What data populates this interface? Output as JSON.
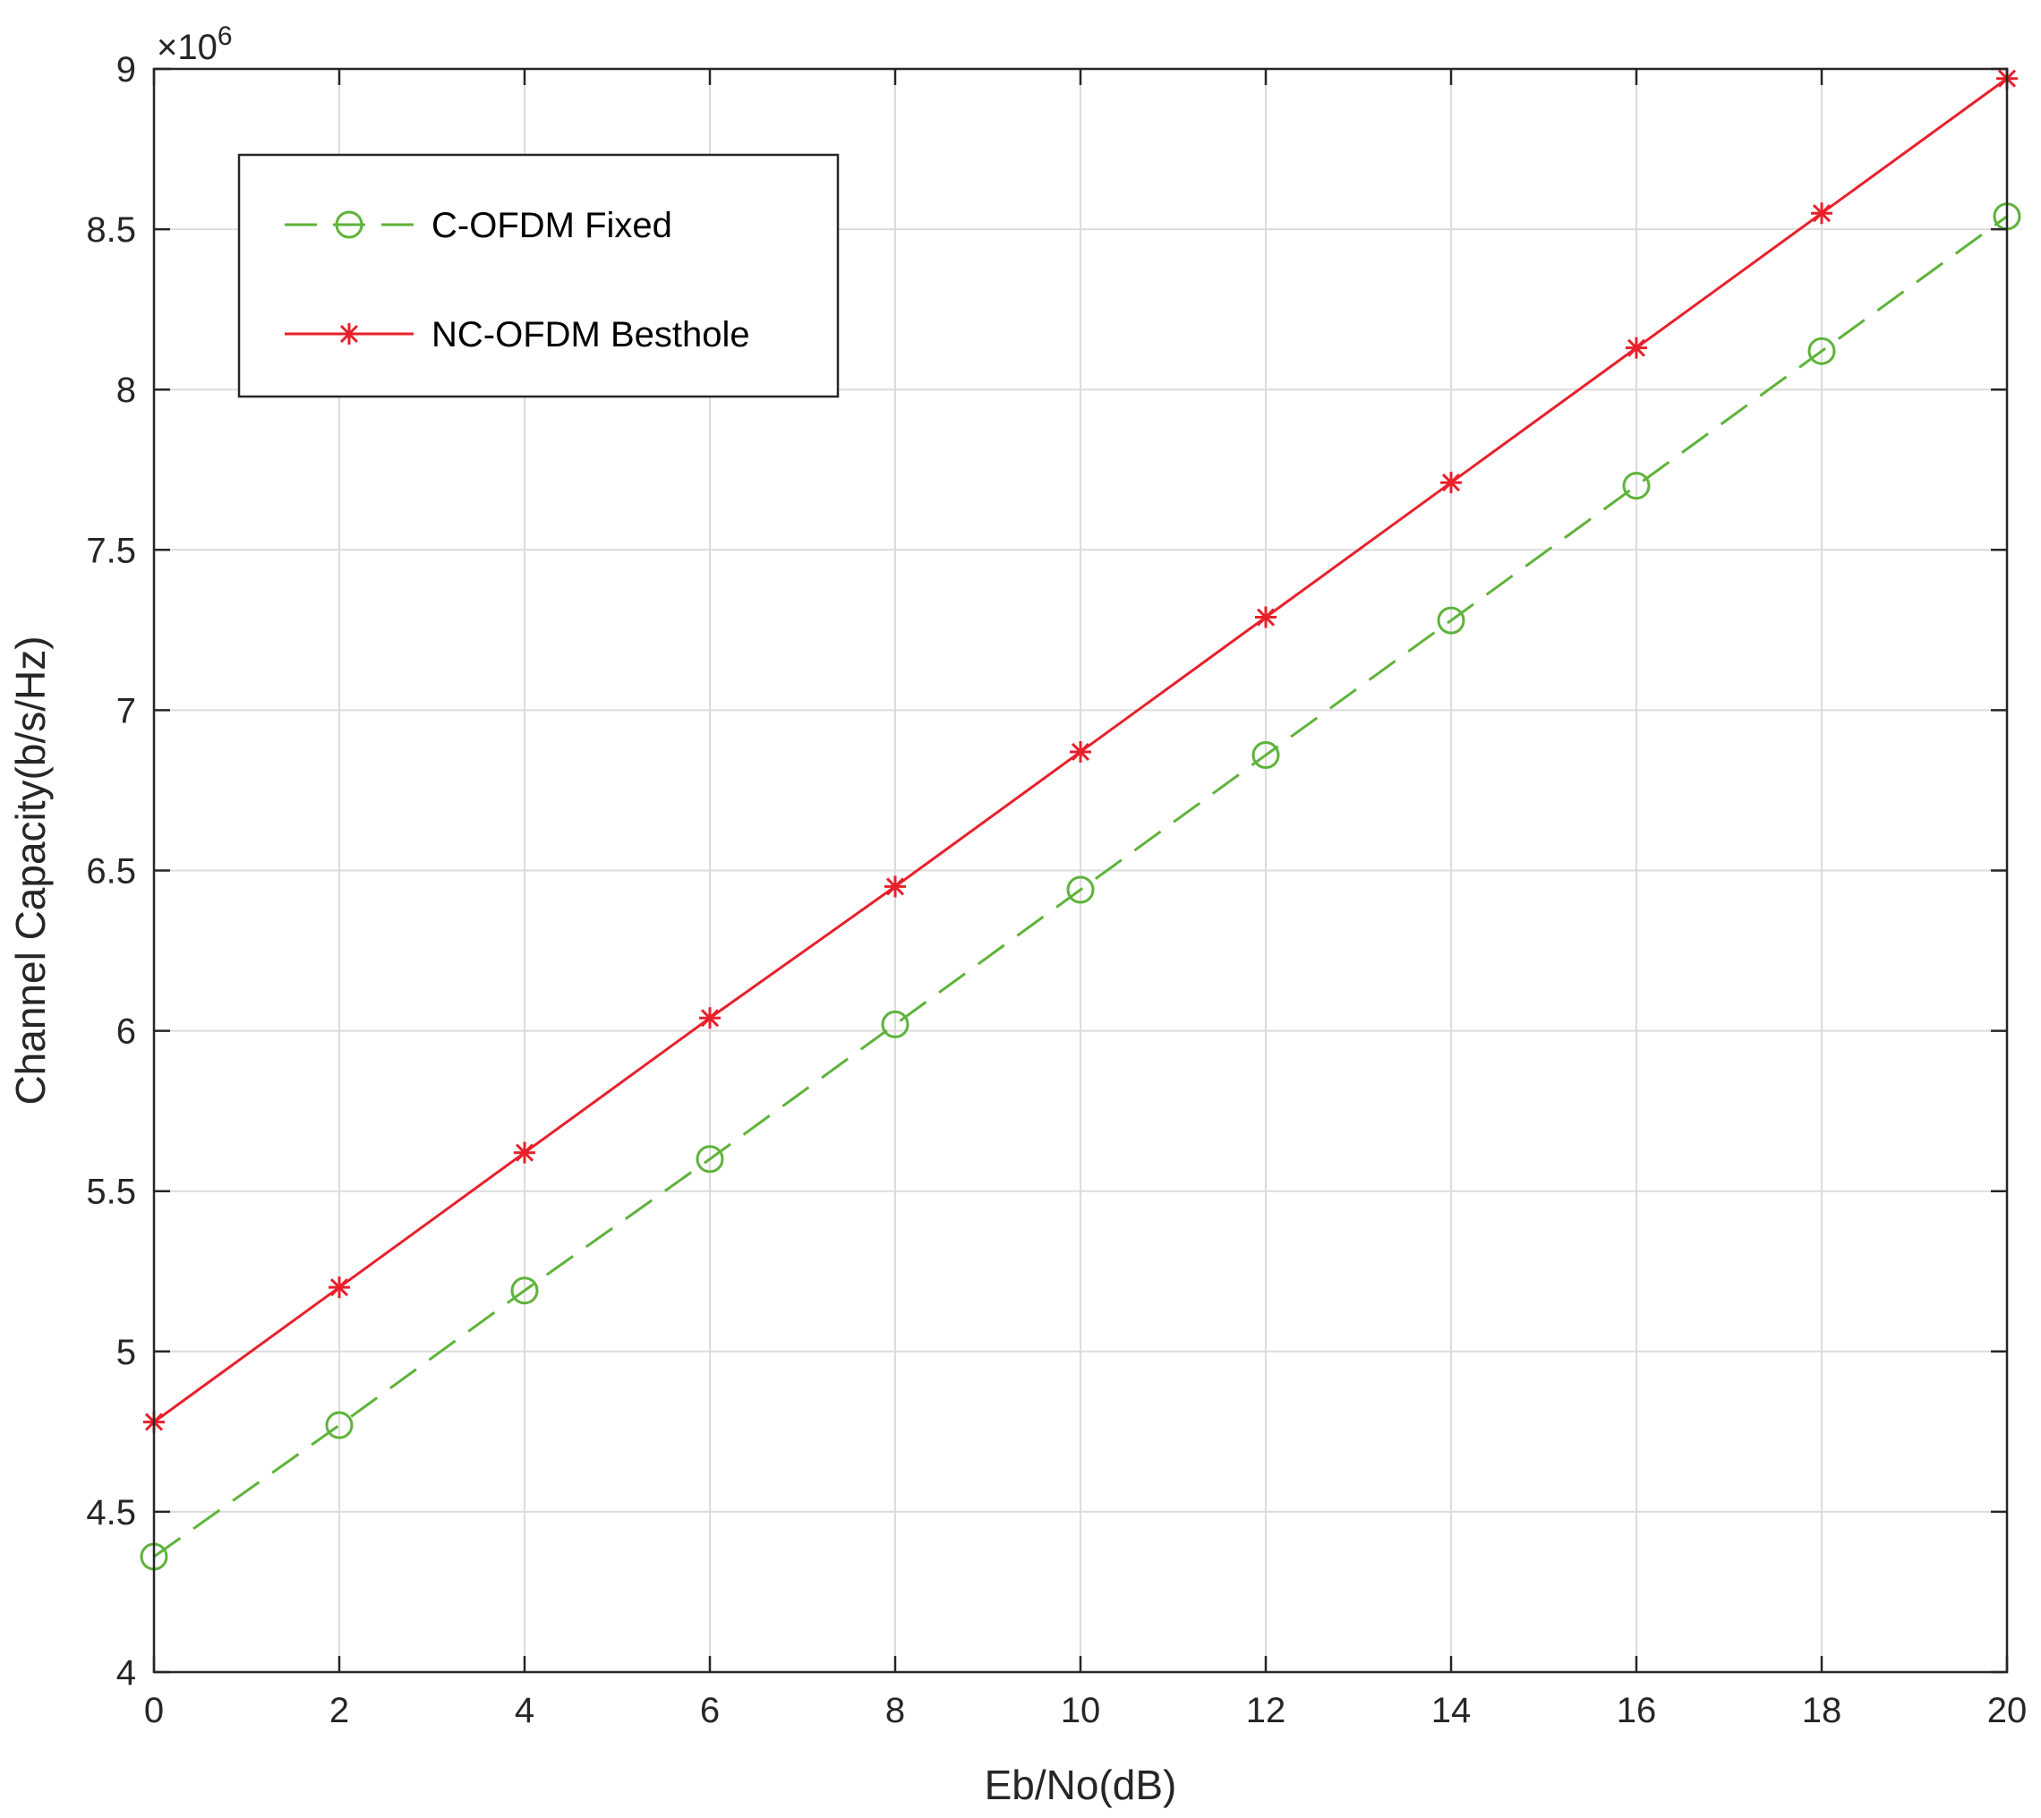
{
  "chart_data": {
    "type": "line",
    "xlabel": "Eb/No(dB)",
    "ylabel": "Channel Capacity(b/s/Hz)",
    "y_multiplier_base": "×10",
    "y_multiplier_exp": "6",
    "xlim": [
      0,
      20
    ],
    "ylim": [
      4,
      9
    ],
    "xticks": [
      0,
      2,
      4,
      6,
      8,
      10,
      12,
      14,
      16,
      18,
      20
    ],
    "yticks": [
      4,
      4.5,
      5,
      5.5,
      6,
      6.5,
      7,
      7.5,
      8,
      8.5,
      9
    ],
    "ytick_labels": [
      "4",
      "4.5",
      "5",
      "5.5",
      "6",
      "6.5",
      "7",
      "7.5",
      "8",
      "8.5",
      "9"
    ],
    "grid": true,
    "legend_position": "top-left",
    "x": [
      0,
      2,
      4,
      6,
      8,
      10,
      12,
      14,
      16,
      18,
      20
    ],
    "series": [
      {
        "name": "C-OFDM Fixed",
        "color": "#5eb33a",
        "line_style": "dashed",
        "marker": "circle",
        "values": [
          4.36,
          4.77,
          5.19,
          5.6,
          6.02,
          6.44,
          6.86,
          7.28,
          7.7,
          8.12,
          8.54
        ]
      },
      {
        "name": "NC-OFDM Besthole",
        "color": "#e8202a",
        "line_style": "solid",
        "marker": "asterisk",
        "values": [
          4.78,
          5.2,
          5.62,
          6.04,
          6.45,
          6.87,
          7.29,
          7.71,
          8.13,
          8.55,
          8.97
        ]
      }
    ]
  }
}
